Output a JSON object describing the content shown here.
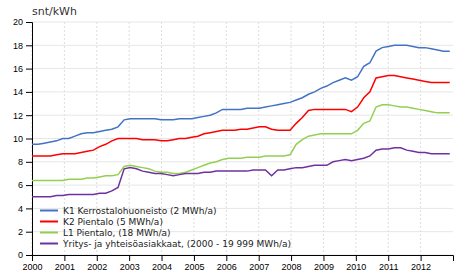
{
  "chart_data": {
    "type": "line",
    "ylabel": "snt/kWh",
    "x": [
      2000,
      2000.189706,
      2000.379412,
      2000.569118,
      2000.758824,
      2000.948529,
      2001.138235,
      2001.327941,
      2001.517647,
      2001.707353,
      2001.897059,
      2002.086765,
      2002.276471,
      2002.466176,
      2002.655882,
      2002.845588,
      2003.035294,
      2003.225,
      2003.414706,
      2003.604412,
      2003.794118,
      2003.983824,
      2004.173529,
      2004.363235,
      2004.552941,
      2004.742647,
      2004.932353,
      2005.122059,
      2005.311765,
      2005.501471,
      2005.691176,
      2005.880882,
      2006.070588,
      2006.260294,
      2006.45,
      2006.639706,
      2006.829412,
      2007.019118,
      2007.208824,
      2007.398529,
      2007.588235,
      2007.777941,
      2007.967647,
      2008.157353,
      2008.347059,
      2008.536765,
      2008.726471,
      2008.916176,
      2009.105882,
      2009.295588,
      2009.485294,
      2009.675,
      2009.864706,
      2010.054412,
      2010.244118,
      2010.433824,
      2010.623529,
      2010.813235,
      2011.002941,
      2011.192647,
      2011.382353,
      2011.572059,
      2011.761765,
      2011.951471,
      2012.141176,
      2012.330882,
      2012.520588,
      2012.710294,
      2012.9
    ],
    "series": [
      {
        "name": "K1 Kerrostalohuoneisto (2 MWh/a)",
        "color": "#4472C4",
        "values": [
          9.5,
          9.5,
          9.6,
          9.7,
          9.8,
          10.0,
          10.0,
          10.2,
          10.4,
          10.5,
          10.5,
          10.6,
          10.7,
          10.8,
          11.0,
          11.6,
          11.7,
          11.7,
          11.7,
          11.7,
          11.7,
          11.6,
          11.6,
          11.6,
          11.7,
          11.7,
          11.7,
          11.8,
          11.9,
          12.0,
          12.2,
          12.5,
          12.5,
          12.5,
          12.5,
          12.6,
          12.6,
          12.6,
          12.7,
          12.8,
          12.9,
          13.0,
          13.1,
          13.3,
          13.5,
          13.8,
          14.0,
          14.3,
          14.5,
          14.8,
          15.0,
          15.2,
          15.0,
          15.3,
          16.2,
          16.5,
          17.5,
          17.8,
          17.9,
          18.0,
          18.0,
          18.0,
          17.9,
          17.8,
          17.8,
          17.7,
          17.6,
          17.5,
          17.5
        ]
      },
      {
        "name": "K2 Pientalo  (5 MWh/a)",
        "color": "#FF0000",
        "values": [
          8.5,
          8.5,
          8.5,
          8.5,
          8.6,
          8.7,
          8.7,
          8.7,
          8.8,
          8.9,
          9.0,
          9.3,
          9.5,
          9.8,
          10.0,
          10.0,
          10.0,
          10.0,
          9.9,
          9.9,
          9.9,
          9.8,
          9.8,
          9.9,
          10.0,
          10.0,
          10.1,
          10.2,
          10.4,
          10.5,
          10.6,
          10.7,
          10.7,
          10.7,
          10.8,
          10.8,
          10.9,
          11.0,
          11.0,
          10.8,
          10.7,
          10.7,
          10.7,
          11.3,
          11.8,
          12.4,
          12.5,
          12.5,
          12.5,
          12.5,
          12.5,
          12.5,
          12.3,
          12.7,
          13.5,
          14.0,
          15.2,
          15.3,
          15.4,
          15.4,
          15.3,
          15.2,
          15.1,
          15.0,
          14.9,
          14.8,
          14.8,
          14.8,
          14.8
        ]
      },
      {
        "name": "L1 Pientalo, (18 MWh/a)",
        "color": "#92D050",
        "values": [
          6.4,
          6.4,
          6.4,
          6.4,
          6.4,
          6.4,
          6.5,
          6.5,
          6.5,
          6.6,
          6.6,
          6.7,
          6.8,
          6.8,
          6.9,
          7.6,
          7.7,
          7.6,
          7.5,
          7.4,
          7.2,
          7.1,
          7.1,
          7.0,
          7.0,
          7.1,
          7.3,
          7.5,
          7.7,
          7.9,
          8.0,
          8.2,
          8.3,
          8.3,
          8.3,
          8.4,
          8.4,
          8.4,
          8.5,
          8.5,
          8.5,
          8.5,
          8.6,
          9.5,
          9.9,
          10.2,
          10.3,
          10.4,
          10.4,
          10.4,
          10.4,
          10.4,
          10.4,
          10.7,
          11.3,
          11.5,
          12.7,
          12.9,
          12.9,
          12.8,
          12.7,
          12.7,
          12.6,
          12.5,
          12.4,
          12.3,
          12.2,
          12.2,
          12.2
        ]
      },
      {
        "name": "Yritys- ja yhteisöasiakkaat, (2000 - 19 999 MWh/a)",
        "color": "#7030A0",
        "values": [
          5.0,
          5.0,
          5.0,
          5.0,
          5.1,
          5.1,
          5.2,
          5.2,
          5.2,
          5.2,
          5.2,
          5.3,
          5.3,
          5.5,
          5.8,
          7.4,
          7.5,
          7.4,
          7.2,
          7.1,
          7.0,
          7.0,
          6.9,
          6.8,
          6.9,
          7.0,
          7.0,
          7.0,
          7.1,
          7.1,
          7.2,
          7.2,
          7.2,
          7.2,
          7.2,
          7.2,
          7.3,
          7.3,
          7.3,
          6.8,
          7.3,
          7.3,
          7.4,
          7.5,
          7.5,
          7.6,
          7.7,
          7.7,
          7.7,
          8.0,
          8.1,
          8.2,
          8.1,
          8.2,
          8.3,
          8.5,
          9.0,
          9.1,
          9.1,
          9.2,
          9.2,
          9.0,
          8.9,
          8.8,
          8.8,
          8.7,
          8.7,
          8.7,
          8.7
        ]
      }
    ],
    "xlim": [
      2000,
      2013.0
    ],
    "xticks": [
      2000,
      2001,
      2002,
      2003,
      2004,
      2005,
      2006,
      2007,
      2008,
      2009,
      2010,
      2011,
      2012
    ],
    "ylim": [
      0,
      20
    ],
    "yticks": [
      0,
      2,
      4,
      6,
      8,
      10,
      12,
      14,
      16,
      18,
      20
    ],
    "grid": true,
    "legend": "lower left"
  }
}
